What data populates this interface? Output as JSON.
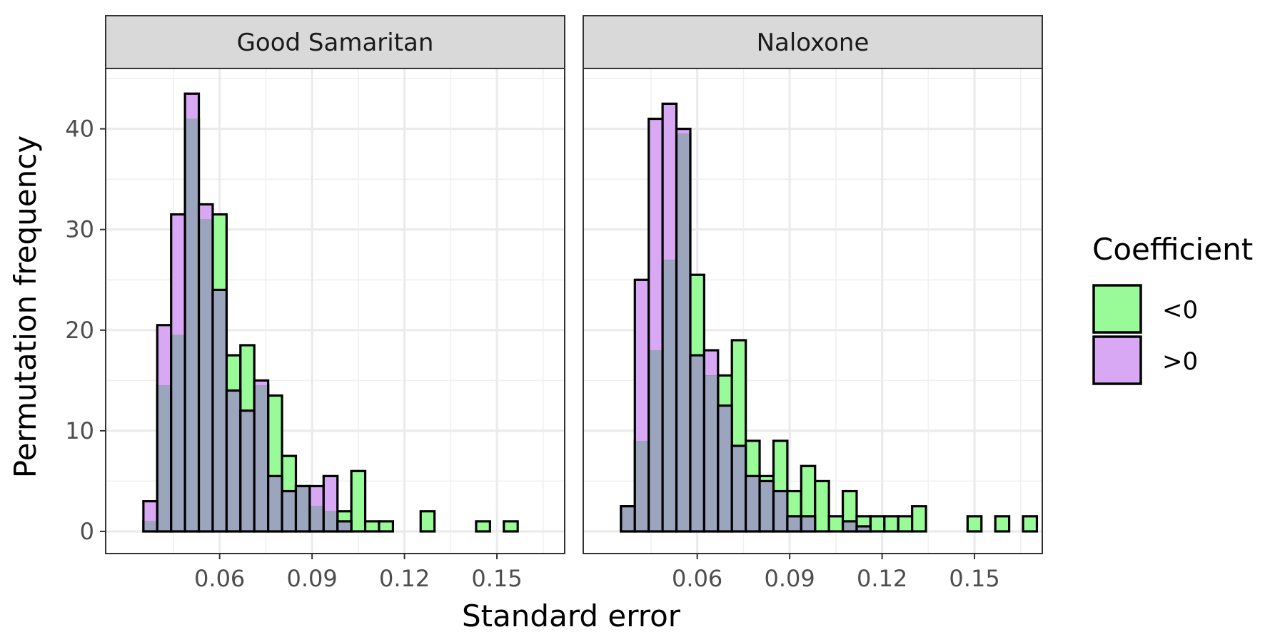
{
  "chart_data": {
    "type": "bar",
    "subtype": "overlaid-histogram-facets",
    "xlabel": "Standard error",
    "ylabel": "Permutation frequency",
    "xlim": [
      0.023,
      0.172
    ],
    "ylim": [
      -2.2,
      46
    ],
    "x_ticks": [
      0.06,
      0.09,
      0.12,
      0.15
    ],
    "x_tick_labels": [
      "0.06",
      "0.09",
      "0.12",
      "0.15"
    ],
    "y_ticks": [
      0,
      10,
      20,
      30,
      40
    ],
    "y_tick_labels": [
      "0",
      "10",
      "20",
      "30",
      "40"
    ],
    "bin_width": 0.0045,
    "grid": true,
    "legend": {
      "title": "Coefficient",
      "position": "right",
      "items": [
        {
          "label": "<0",
          "color": "#98fb98"
        },
        {
          "label": ">0",
          "color": "#d8a8f5"
        }
      ]
    },
    "overlap_color": "#9ba5be",
    "panels": [
      {
        "title": "Good Samaritan",
        "x": [
          0.0375,
          0.042,
          0.0465,
          0.051,
          0.0555,
          0.06,
          0.0645,
          0.069,
          0.0735,
          0.078,
          0.0825,
          0.087,
          0.0915,
          0.096,
          0.1005,
          0.105,
          0.1095,
          0.114,
          0.1185,
          0.123,
          0.1275,
          0.132,
          0.1365,
          0.141,
          0.1455,
          0.15,
          0.1545,
          0.159,
          0.1635
        ],
        "series": [
          {
            "name": "<0",
            "values": [
              1,
              14.5,
              19.5,
              41,
              31,
              31.5,
              17.5,
              18.5,
              14.5,
              13.5,
              7.5,
              4.5,
              2.5,
              2,
              2,
              6,
              1,
              1,
              0,
              0,
              2,
              0,
              0,
              0,
              1,
              0,
              1,
              0,
              0
            ]
          },
          {
            "name": ">0",
            "values": [
              3,
              20.5,
              31.5,
              43.5,
              32.5,
              24,
              14,
              12,
              15,
              5.5,
              4,
              4.5,
              4.5,
              5.5,
              1,
              0,
              0,
              0,
              0,
              0,
              0,
              0,
              0,
              0,
              0,
              0,
              0,
              0,
              0
            ]
          }
        ]
      },
      {
        "title": "Naloxone",
        "x": [
          0.0375,
          0.042,
          0.0465,
          0.051,
          0.0555,
          0.06,
          0.0645,
          0.069,
          0.0735,
          0.078,
          0.0825,
          0.087,
          0.0915,
          0.096,
          0.1005,
          0.105,
          0.1095,
          0.114,
          0.1185,
          0.123,
          0.1275,
          0.132,
          0.1365,
          0.141,
          0.1455,
          0.15,
          0.1545,
          0.159,
          0.1635,
          0.168
        ],
        "series": [
          {
            "name": "<0",
            "values": [
              2.5,
              9,
              18,
              27,
              39.5,
              25.5,
              15.5,
              15.5,
              19,
              9,
              5.5,
              9,
              4,
              6.5,
              5,
              1.5,
              4,
              1.5,
              1.5,
              1.5,
              1.5,
              2.5,
              0,
              0,
              0,
              1.5,
              0,
              1.5,
              0,
              1.5
            ]
          },
          {
            "name": ">0",
            "values": [
              2.5,
              25,
              41,
              42.5,
              40,
              17.5,
              18,
              12.5,
              8.5,
              5.5,
              5,
              4,
              1.5,
              1.5,
              0,
              0,
              1,
              0.5,
              0,
              0,
              0,
              0,
              0,
              0,
              0,
              0,
              0,
              0,
              0,
              0
            ]
          }
        ]
      }
    ]
  }
}
